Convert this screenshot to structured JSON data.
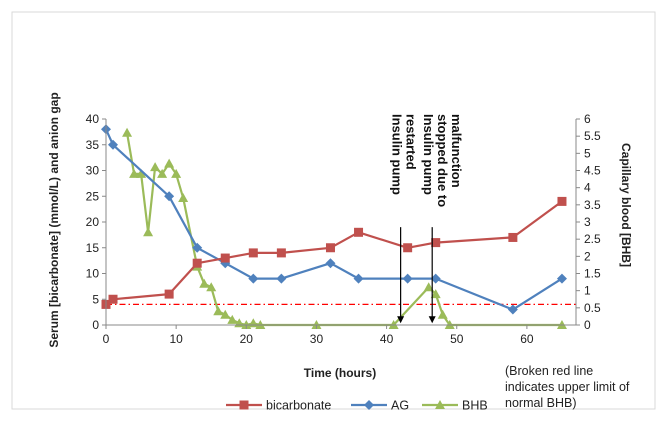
{
  "chart_data": {
    "type": "line",
    "xlabel": "Time (hours)",
    "ylabel": "Serum [bicarbonate] (mmol/L) and anion gap",
    "y2label": "Capillary blood [BHB]",
    "xlim": [
      0,
      67
    ],
    "ylim": [
      0,
      40
    ],
    "y2lim": [
      0,
      6
    ],
    "x_ticks": [
      "0",
      "10",
      "20",
      "30",
      "40",
      "50",
      "60"
    ],
    "y_ticks": [
      "0",
      "5",
      "10",
      "15",
      "20",
      "25",
      "30",
      "35",
      "40"
    ],
    "y2_ticks": [
      "0",
      "0.5",
      "1",
      "1.5",
      "2",
      "2.5",
      "3",
      "3.5",
      "4",
      "4.5",
      "5",
      "5.5",
      "6"
    ],
    "reference_line": {
      "axis": "y2",
      "value": 0.6,
      "style": "dash-dot",
      "color": "#ff0000"
    },
    "series": [
      {
        "name": "bicarbonate",
        "axis": "y",
        "color": "#c0504d",
        "marker": "square",
        "x": [
          0,
          1,
          9,
          13,
          17,
          21,
          25,
          32,
          36,
          43,
          47,
          58,
          65
        ],
        "y": [
          4,
          5,
          6,
          12,
          13,
          14,
          14,
          15,
          18,
          15,
          16,
          17,
          24
        ]
      },
      {
        "name": "AG",
        "axis": "y",
        "color": "#4f81bd",
        "marker": "diamond",
        "x": [
          0,
          1,
          9,
          13,
          17,
          21,
          25,
          32,
          36,
          43,
          47,
          58,
          65
        ],
        "y": [
          38,
          35,
          25,
          15,
          12,
          9,
          9,
          12,
          9,
          9,
          9,
          3,
          9
        ]
      },
      {
        "name": "BHB",
        "axis": "y2",
        "color": "#9bbb59",
        "marker": "triangle",
        "x": [
          3,
          4,
          5,
          6,
          7,
          8,
          9,
          10,
          11,
          13,
          14,
          15,
          16,
          17,
          18,
          19,
          20,
          21,
          22,
          30,
          41,
          46,
          47,
          48,
          49,
          65
        ],
        "y": [
          5.6,
          4.4,
          4.4,
          2.7,
          4.6,
          4.4,
          4.7,
          4.4,
          3.7,
          1.7,
          1.2,
          1.1,
          0.4,
          0.3,
          0.15,
          0.05,
          0,
          0.05,
          0,
          0,
          0,
          1.1,
          0.9,
          0.3,
          0,
          0
        ]
      }
    ],
    "annotations": [
      {
        "text_lines": [
          "Insulin pump",
          "restarted"
        ],
        "x": 42,
        "arrow_from_y2": 2.85,
        "arrow_to_y2": 0.05
      },
      {
        "text_lines": [
          "Insulin pump",
          "stopped due to",
          "malfunction"
        ],
        "x": 46.5,
        "arrow_from_y2": 2.85,
        "arrow_to_y2": 0.05
      }
    ],
    "note_lines": [
      "(Broken red line",
      "indicates upper limit of",
      "normal BHB)"
    ],
    "legend_position": "bottom"
  }
}
